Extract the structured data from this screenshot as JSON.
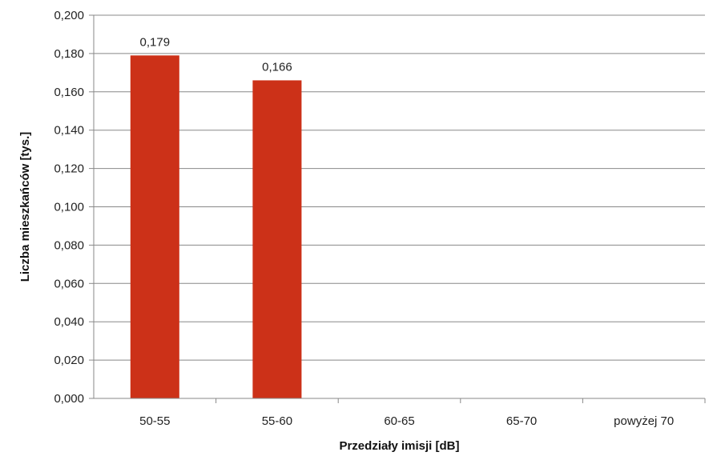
{
  "chart_data": {
    "type": "bar",
    "categories": [
      "50-55",
      "55-60",
      "60-65",
      "65-70",
      "powyżej 70"
    ],
    "values": [
      0.179,
      0.166,
      0,
      0,
      0
    ],
    "data_labels": [
      "0,179",
      "0,166",
      "",
      "",
      ""
    ],
    "xlabel": "Przedziały  imisji [dB]",
    "ylabel": "Liczba mieszkańców  [tys.]",
    "ylim": [
      0,
      0.2
    ],
    "yticks": [
      0,
      0.02,
      0.04,
      0.06,
      0.08,
      0.1,
      0.12,
      0.14,
      0.16,
      0.18,
      0.2
    ],
    "ytick_labels": [
      "0,000",
      "0,020",
      "0,040",
      "0,060",
      "0,080",
      "0,100",
      "0,120",
      "0,140",
      "0,160",
      "0,180",
      "0,200"
    ],
    "grid": true,
    "legend": "none",
    "bar_color": "#cc3118",
    "grid_color": "#888888"
  }
}
